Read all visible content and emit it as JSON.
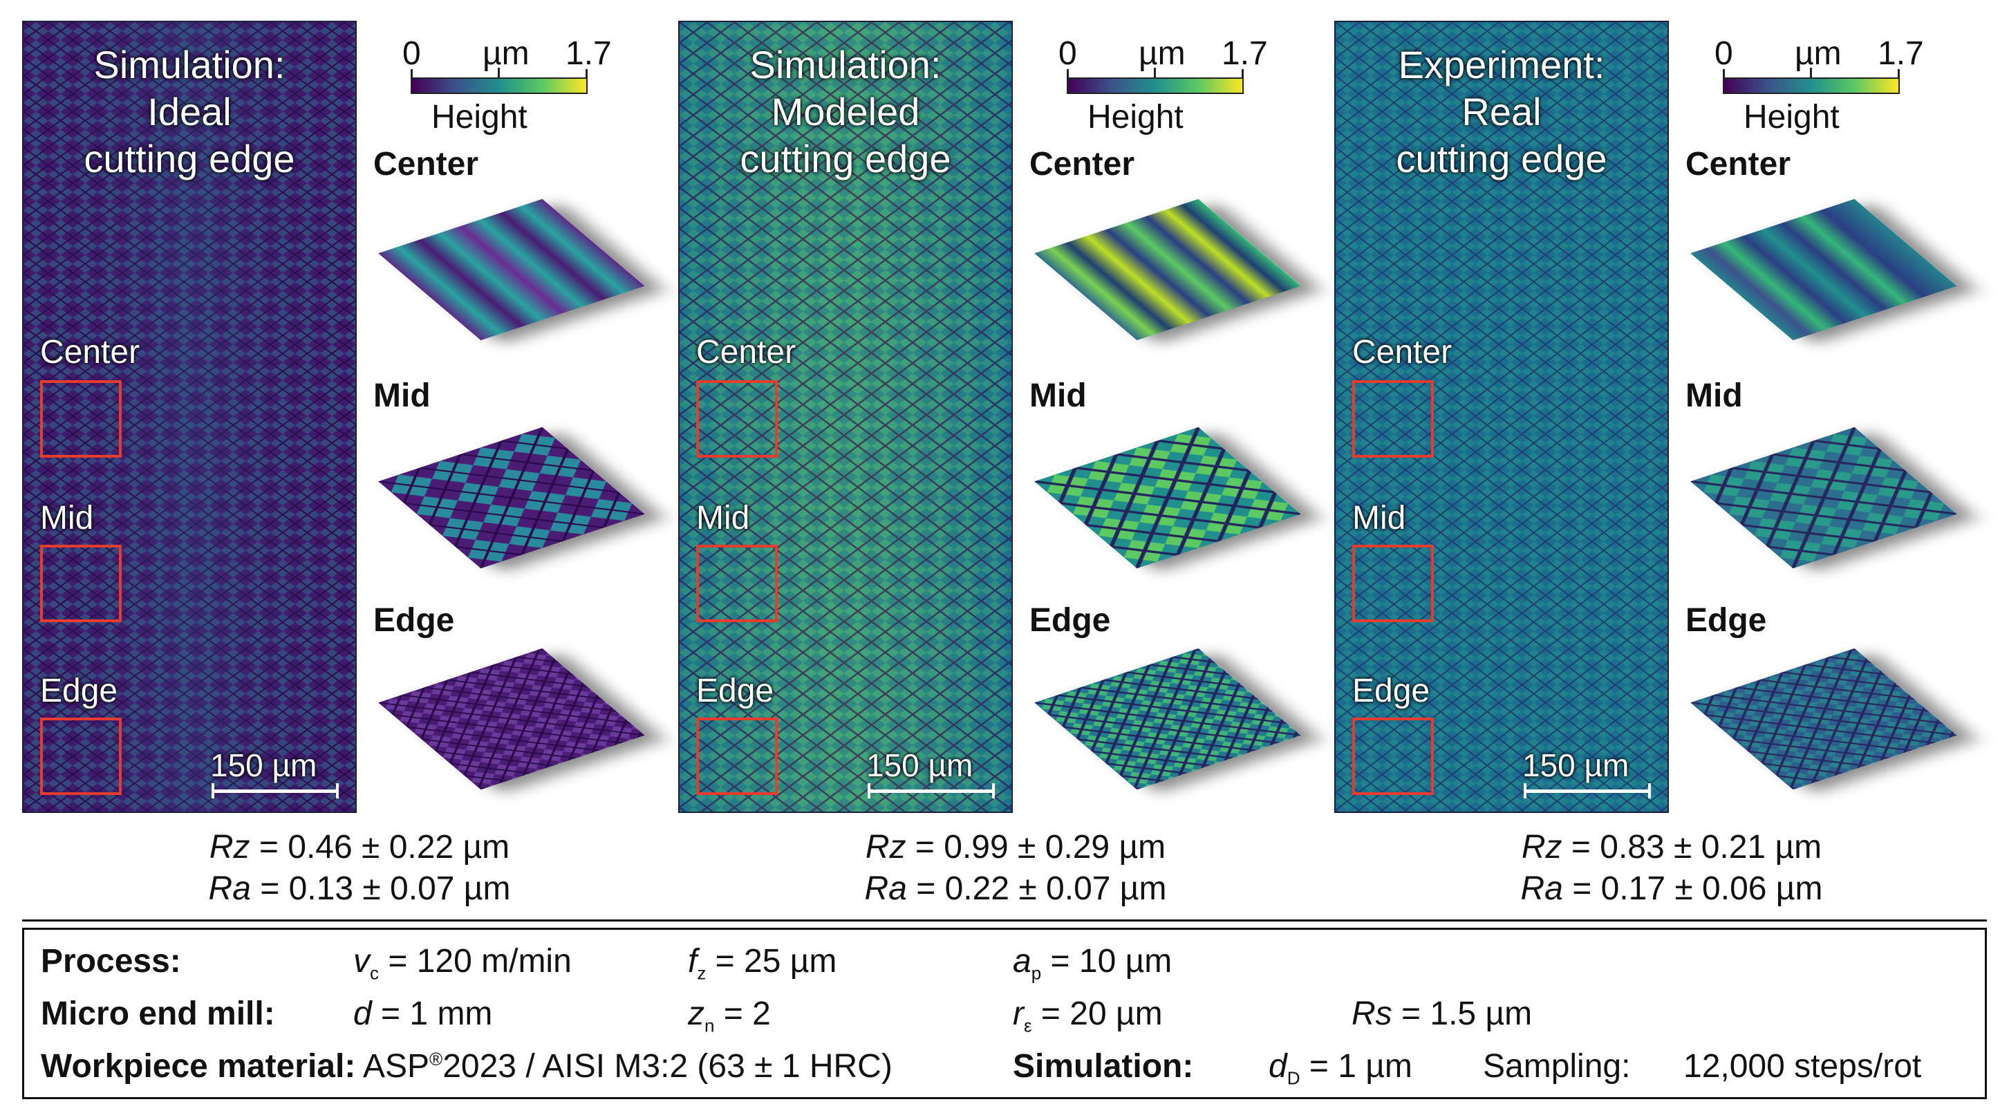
{
  "colors": {
    "ideal_bg": "#3e1a6b",
    "modeled_bg": "#1e7c8a",
    "real_bg": "#1b6e8e",
    "box_red": "#e63c2e",
    "viridis": [
      "#440154",
      "#3b528b",
      "#21908d",
      "#5dc962",
      "#fde725"
    ]
  },
  "panels": [
    {
      "title": "Simulation:\nIdeal\ncutting edge",
      "regions": [
        "Center",
        "Mid",
        "Edge"
      ],
      "scale": "150 µm"
    },
    {
      "title": "Simulation:\nModeled\ncutting edge",
      "regions": [
        "Center",
        "Mid",
        "Edge"
      ],
      "scale": "150 µm"
    },
    {
      "title": "Experiment:\nReal\ncutting edge",
      "regions": [
        "Center",
        "Mid",
        "Edge"
      ],
      "scale": "150 µm"
    }
  ],
  "colorbar": {
    "min": "0",
    "unit": "µm",
    "max": "1.7",
    "label": "Height"
  },
  "tiles": {
    "center": "Center",
    "mid": "Mid",
    "edge": "Edge"
  },
  "roughness": [
    {
      "rz_sym": "Rz",
      "rz_val": " = 0.46 ± 0.22 µm",
      "ra_sym": "Ra",
      "ra_val": " = 0.13 ± 0.07 µm"
    },
    {
      "rz_sym": "Rz",
      "rz_val": " = 0.99 ± 0.29 µm",
      "ra_sym": "Ra",
      "ra_val": " = 0.22 ± 0.07 µm"
    },
    {
      "rz_sym": "Rz",
      "rz_val": " = 0.83 ± 0.21 µm",
      "ra_sym": "Ra",
      "ra_val": " = 0.17 ± 0.06 µm"
    }
  ],
  "params": {
    "process_label": "Process:",
    "vc_sym": "v",
    "vc_sub": "c",
    "vc_val": " = 120 m/min",
    "fz_sym": "f",
    "fz_sub": "z",
    "fz_val": " = 25 µm",
    "ap_sym": "a",
    "ap_sub": "p",
    "ap_val": " = 10 µm",
    "mill_label": "Micro end mill:",
    "d_sym": "d",
    "d_val": " = 1 mm",
    "zn_sym": "z",
    "zn_sub": "n",
    "zn_val": " = 2",
    "re_sym": "r",
    "re_sub": "ε",
    "re_val": " = 20 µm",
    "rs_sym": "Rs",
    "rs_val": " = 1.5 µm",
    "wp_label": "Workpiece material:",
    "wp_pre": "ASP",
    "wp_sup": "®",
    "wp_val": "2023 / AISI M3:2 (63 ± 1 HRC)",
    "sim_label": "Simulation:",
    "dd_sym": "d",
    "dd_sub": "D",
    "dd_val": " = 1 µm",
    "sampling_label": "Sampling:",
    "sampling_val": "12,000 steps/rot"
  }
}
